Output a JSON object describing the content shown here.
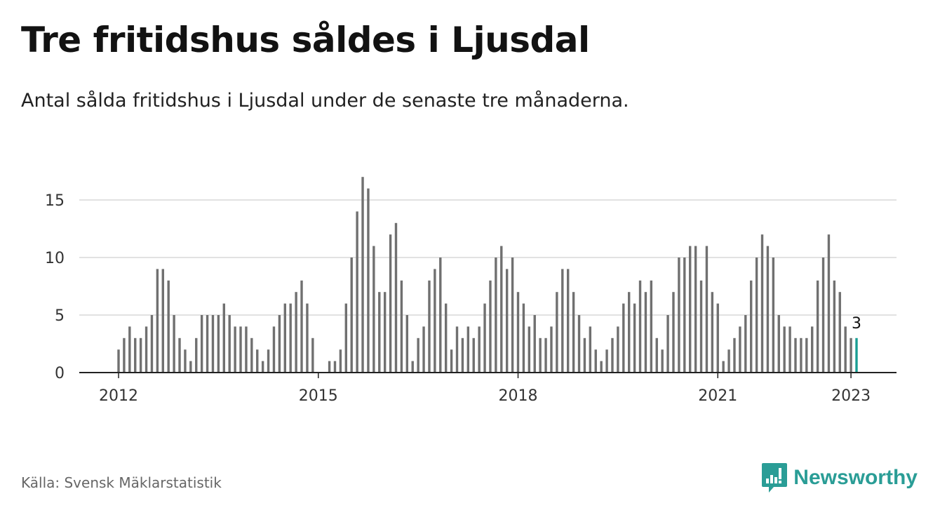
{
  "title": "Tre fritidshus såldes i Ljusdal",
  "subtitle": "Antal sålda fritidshus i Ljusdal under de senaste tre månaderna.",
  "source": "Källa: Svensk Mäklarstatistik",
  "brand": {
    "name": "Newsworthy",
    "icon": "newsworthy-logo-icon",
    "color": "#2a9d96"
  },
  "chart_data": {
    "type": "bar",
    "start": "2012-01",
    "values": [
      2,
      3,
      4,
      3,
      3,
      4,
      5,
      9,
      9,
      8,
      5,
      3,
      2,
      1,
      3,
      5,
      5,
      5,
      5,
      6,
      5,
      4,
      4,
      4,
      3,
      2,
      1,
      2,
      4,
      5,
      6,
      6,
      7,
      8,
      6,
      3,
      0,
      0,
      1,
      1,
      2,
      6,
      10,
      14,
      17,
      16,
      11,
      7,
      7,
      12,
      13,
      8,
      5,
      1,
      3,
      4,
      8,
      9,
      10,
      6,
      2,
      4,
      3,
      4,
      3,
      4,
      6,
      8,
      10,
      11,
      9,
      10,
      7,
      6,
      4,
      5,
      3,
      3,
      4,
      7,
      9,
      9,
      7,
      5,
      3,
      4,
      2,
      1,
      2,
      3,
      4,
      6,
      7,
      6,
      8,
      7,
      8,
      3,
      2,
      5,
      7,
      10,
      10,
      11,
      11,
      8,
      11,
      7,
      6,
      1,
      2,
      3,
      4,
      5,
      8,
      10,
      12,
      11,
      10,
      5,
      4,
      4,
      3,
      3,
      3,
      4,
      8,
      10,
      12,
      8,
      7,
      4,
      3,
      3
    ],
    "ylim": [
      0,
      17
    ],
    "yticks": [
      0,
      5,
      10,
      15
    ],
    "xticks": [
      "2012",
      "2015",
      "2018",
      "2021",
      "2023"
    ],
    "highlight_last": {
      "label": "3",
      "color": "#1a9e93"
    },
    "bar_color": "#707070",
    "grid": true
  }
}
